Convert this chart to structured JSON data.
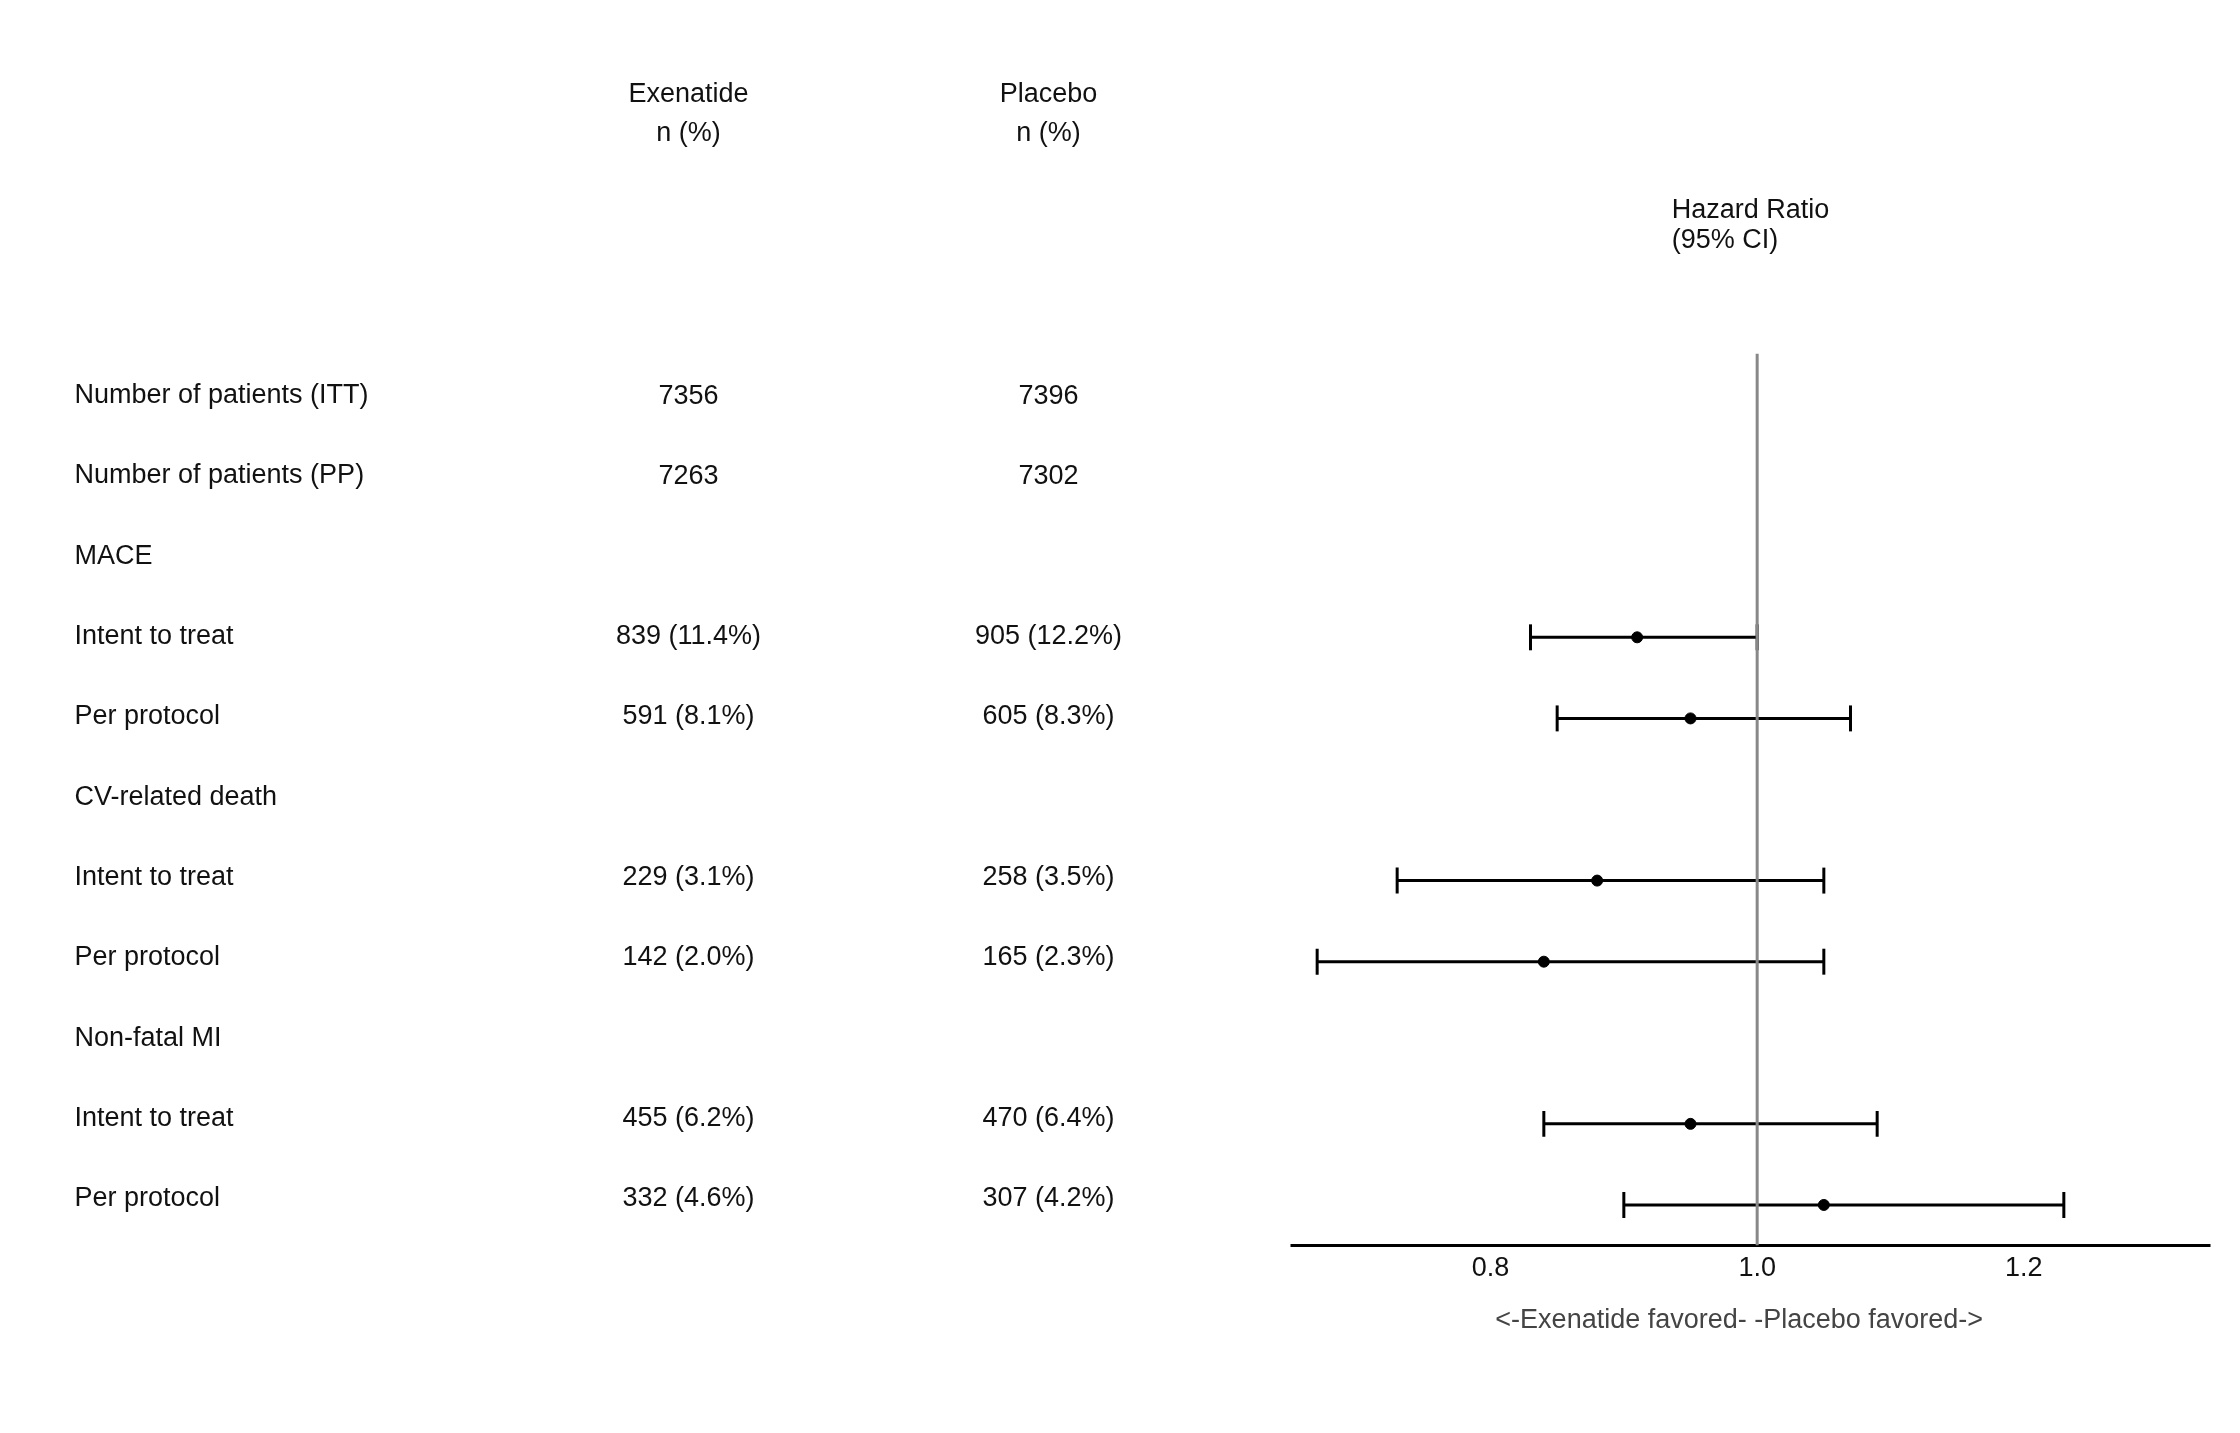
{
  "chart_data": [
    {
      "type": "other",
      "categories": [
        "Exenatide\nn (%)",
        "Placebo\nn (%)"
      ],
      "y_categories": [
        "Number of patients (ITT)",
        "Number of patients (PP)",
        "MACE",
        "Intent to treat",
        "Per protocol",
        "CV-related death",
        "Intent to treat",
        "Per protocol",
        "Non-fatal MI",
        "Intent to treat",
        "Per protocol"
      ],
      "cell_labels": [
        [
          "7356",
          "7396"
        ],
        [
          "7263",
          "7302"
        ],
        [
          null,
          null
        ],
        [
          "839 (11.4%)",
          "905 (12.2%)"
        ],
        [
          "591 (8.1%)",
          "605 (8.3%)"
        ],
        [
          null,
          null
        ],
        [
          "229 (3.1%)",
          "258 (3.5%)"
        ],
        [
          "142 (2.0%)",
          "165 (2.3%)"
        ],
        [
          null,
          null
        ],
        [
          "455 (6.2%)",
          "470 (6.4%)"
        ],
        [
          "332 (4.6%)",
          "307 (4.2%)"
        ]
      ]
    },
    {
      "type": "scatter",
      "orientation": "horizontal",
      "title": "Hazard Ratio\n(95% CI)",
      "xlabel": "<-Exenatide favored-    -Placebo favored->",
      "categories": [
        null,
        null,
        null,
        null,
        null,
        null,
        null,
        null,
        null,
        null,
        null
      ],
      "values": [
        null,
        null,
        null,
        0.91,
        0.95,
        null,
        0.88,
        0.84,
        null,
        0.95,
        1.05
      ],
      "errors": [
        null,
        null,
        null,
        [
          0.83,
          1.0
        ],
        [
          0.85,
          1.07
        ],
        null,
        [
          0.73,
          1.05
        ],
        [
          0.67,
          1.05
        ],
        null,
        [
          0.84,
          1.09
        ],
        [
          0.9,
          1.23
        ]
      ],
      "color": "#000000",
      "marker": "circle",
      "grid": false,
      "tick_labels": "x",
      "xlim": [
        0.65,
        1.34
      ],
      "xticks": [
        {
          "value": 0.8,
          "label": "0.8"
        },
        {
          "value": 1.0,
          "label": "1.0"
        },
        {
          "value": 1.2,
          "label": "1.2"
        }
      ],
      "ref_lines": [
        {
          "axis": "x",
          "value": 1.0,
          "label": null,
          "color": "#888888"
        }
      ]
    }
  ]
}
